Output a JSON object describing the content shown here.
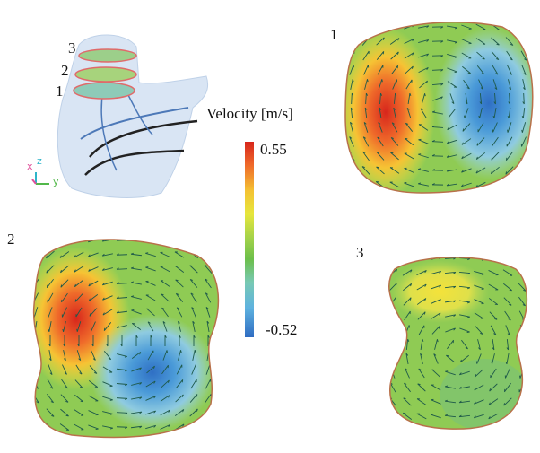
{
  "model": {
    "slice_labels": [
      "3",
      "2",
      "1"
    ],
    "axes": {
      "x": "x",
      "z": "z",
      "y": "y"
    }
  },
  "colorbar": {
    "title": "Velocity [m/s]",
    "max": 0.55,
    "min": -0.52
  },
  "panels": [
    {
      "label": "1"
    },
    {
      "label": "2"
    },
    {
      "label": "3"
    }
  ]
}
